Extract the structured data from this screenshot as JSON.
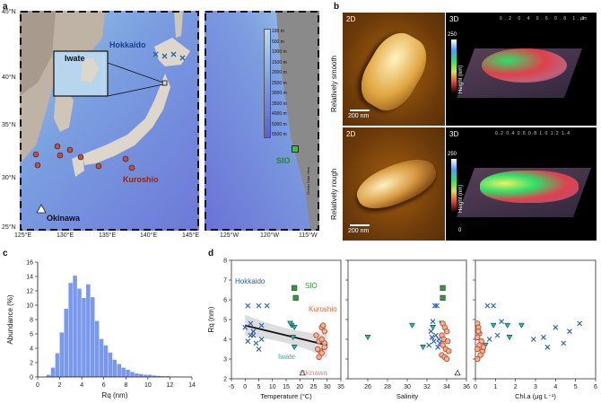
{
  "panels": {
    "a": "a",
    "b": "b",
    "c": "c",
    "d": "d"
  },
  "map": {
    "lat_ticks": [
      "45°N",
      "40°N",
      "35°N",
      "30°N",
      "25°N"
    ],
    "lon_ticks_left": [
      "125°E",
      "130°E",
      "135°E",
      "140°E",
      "145°E"
    ],
    "lon_ticks_right": [
      "125°W",
      "120°W",
      "115°W"
    ],
    "labels": {
      "hokkaido": "Hokkaido",
      "iwate": "Iwate",
      "kuroshio": "Kuroshio",
      "okinawa": "Okinawa",
      "sio": "SIO"
    },
    "depth_legend": [
      "100 m",
      "500 m",
      "1000 m",
      "1500 m",
      "2000 m",
      "2500 m",
      "3000 m",
      "3500 m",
      "4000 m",
      "5000 m",
      "6500 m"
    ],
    "credit": "Ocean Data View"
  },
  "afm": {
    "tag2d": "2D",
    "tag3d": "3D",
    "row1": "Relatively smooth",
    "row2": "Relatively rough",
    "scale": "200 nm",
    "height_label": "Height (nm)",
    "cbar_max": "250",
    "cbar_min": "0",
    "axis_um": "μm",
    "ticks_r1": [
      "0.2",
      "0.4",
      "0.6",
      "0.8",
      "1.0"
    ],
    "ticks_r2": [
      "0.2",
      "0.4",
      "0.6",
      "0.8",
      "1.0",
      "1.2",
      "1.4"
    ]
  },
  "hist": {
    "ylabel": "Abundance (%)",
    "xlabel": "Rq (nm)",
    "xticks": [
      "0",
      "2",
      "4",
      "6",
      "8",
      "10",
      "12",
      "14"
    ],
    "yticks": [
      "0",
      "2",
      "4",
      "6",
      "8",
      "10",
      "12",
      "14",
      "16"
    ]
  },
  "scatter": {
    "ylabel": "Rq (nm)",
    "ylim": [
      2,
      8
    ],
    "yticks": [
      "2",
      "3",
      "4",
      "5",
      "6",
      "7",
      "8"
    ],
    "panel1": {
      "xlabel": "Temperature (°C)",
      "xticks": [
        "-5",
        "0",
        "5",
        "10",
        "15",
        "20",
        "25",
        "30",
        "35"
      ]
    },
    "panel2": {
      "xlabel": "Salinity",
      "xticks": [
        "26",
        "28",
        "30",
        "32",
        "34",
        "36"
      ]
    },
    "panel3": {
      "xlabel": "Chl.a (μg L⁻¹)",
      "xticks": [
        "0",
        "1",
        "2",
        "3",
        "4",
        "5",
        "6"
      ]
    },
    "legend": {
      "hokkaido": "Hokkaido",
      "sio": "SIO",
      "kuroshio": "Kuroshio",
      "iwate": "Iwate",
      "okinawa": "Okinawa"
    },
    "colors": {
      "hokkaido": "#2a5fb0",
      "sio": "#2e9c3a",
      "kuroshio": "#d2682a",
      "iwate": "#1fb6b0",
      "okinawa": "#d08a8a"
    }
  },
  "chart_data": [
    {
      "type": "bar",
      "title": "",
      "xlabel": "Rq (nm)",
      "ylabel": "Abundance (%)",
      "xlim": [
        0,
        14
      ],
      "ylim": [
        0,
        16
      ],
      "bin_width": 0.4,
      "bin_start": [
        0.8,
        1.2,
        1.6,
        2.0,
        2.4,
        2.8,
        3.2,
        3.6,
        4.0,
        4.4,
        4.8,
        5.2,
        5.6,
        6.0,
        6.4,
        6.8,
        7.2,
        7.6,
        8.0,
        8.4,
        8.8,
        9.2,
        9.6,
        10.0,
        10.4,
        10.8,
        11.2,
        11.6,
        12.0,
        12.4
      ],
      "values": [
        0.3,
        1.3,
        3.3,
        6.2,
        9.5,
        13.1,
        14.1,
        12.3,
        11.0,
        12.9,
        11.1,
        7.8,
        5.3,
        4.4,
        3.4,
        2.4,
        1.8,
        1.3,
        1.0,
        0.7,
        0.5,
        0.4,
        0.3,
        0.3,
        0.2,
        0.15,
        0.1,
        0.1,
        0.05,
        0.05
      ]
    },
    {
      "type": "scatter",
      "xlabel": "Temperature (°C)",
      "ylabel": "Rq (nm)",
      "xlim": [
        -5,
        35
      ],
      "ylim": [
        2,
        8
      ],
      "series": [
        {
          "name": "Hokkaido",
          "marker": "x",
          "points": [
            [
              0,
              4.6
            ],
            [
              1,
              5.7
            ],
            [
              2,
              4.8
            ],
            [
              3,
              4.2
            ],
            [
              4,
              3.8
            ],
            [
              5,
              5.7
            ],
            [
              6,
              4.0
            ],
            [
              6,
              4.7
            ],
            [
              8,
              5.7
            ],
            [
              5,
              3.5
            ],
            [
              1,
              3.9
            ],
            [
              2,
              4.2
            ],
            [
              3,
              4.4
            ]
          ]
        },
        {
          "name": "SIO",
          "marker": "square",
          "points": [
            [
              18,
              6.6
            ],
            [
              18.5,
              6.1
            ]
          ]
        },
        {
          "name": "Iwate",
          "marker": "triangle-down",
          "points": [
            [
              17,
              4.7
            ],
            [
              18,
              4.6
            ],
            [
              17.5,
              4.1
            ],
            [
              18,
              3.6
            ],
            [
              16.5,
              4.8
            ]
          ]
        },
        {
          "name": "Kuroshio",
          "marker": "circle",
          "points": [
            [
              26,
              4.2
            ],
            [
              27,
              3.9
            ],
            [
              28,
              4.6
            ],
            [
              28.5,
              4.7
            ],
            [
              29,
              3.8
            ],
            [
              27.5,
              3.4
            ],
            [
              28,
              3.3
            ],
            [
              29,
              3.6
            ],
            [
              27,
              3.1
            ],
            [
              28,
              4.0
            ],
            [
              29,
              4.4
            ],
            [
              26.5,
              3.5
            ]
          ]
        },
        {
          "name": "Okinawa",
          "marker": "triangle-up",
          "points": [
            [
              21,
              2.3
            ]
          ]
        }
      ],
      "trend_line": {
        "x": [
          0,
          30
        ],
        "y": [
          4.7,
          3.7
        ]
      }
    },
    {
      "type": "scatter",
      "xlabel": "Salinity",
      "ylabel": "Rq (nm)",
      "xlim": [
        24,
        36
      ],
      "ylim": [
        2,
        8
      ],
      "series": [
        {
          "name": "Hokkaido",
          "marker": "x",
          "points": [
            [
              32.4,
              4.4
            ],
            [
              32.8,
              5.7
            ],
            [
              33.0,
              5.7
            ],
            [
              32.6,
              4.9
            ],
            [
              33.2,
              4.0
            ],
            [
              32.7,
              3.9
            ],
            [
              33.3,
              3.8
            ],
            [
              32.9,
              4.2
            ],
            [
              32.2,
              3.7
            ],
            [
              33.1,
              3.6
            ],
            [
              32.5,
              4.1
            ]
          ]
        },
        {
          "name": "SIO",
          "marker": "square",
          "points": [
            [
              33.6,
              6.6
            ],
            [
              33.6,
              6.1
            ]
          ]
        },
        {
          "name": "Iwate",
          "marker": "triangle-down",
          "points": [
            [
              26.0,
              4.1
            ],
            [
              30.5,
              4.7
            ],
            [
              31.6,
              3.6
            ],
            [
              32.6,
              4.6
            ],
            [
              33.5,
              4.8
            ]
          ]
        },
        {
          "name": "Kuroshio",
          "marker": "circle",
          "points": [
            [
              33.6,
              4.8
            ],
            [
              33.8,
              4.6
            ],
            [
              34.0,
              4.4
            ],
            [
              33.5,
              4.2
            ],
            [
              33.7,
              4.0
            ],
            [
              34.1,
              3.9
            ],
            [
              33.6,
              3.7
            ],
            [
              33.9,
              3.5
            ],
            [
              34.2,
              3.4
            ],
            [
              33.5,
              3.2
            ],
            [
              33.8,
              3.1
            ],
            [
              34.0,
              3.0
            ]
          ]
        },
        {
          "name": "Okinawa",
          "marker": "triangle-up",
          "points": [
            [
              35.1,
              2.3
            ]
          ]
        }
      ]
    },
    {
      "type": "scatter",
      "xlabel": "Chl.a (μg L⁻¹)",
      "ylabel": "Rq (nm)",
      "xlim": [
        0,
        6
      ],
      "ylim": [
        2,
        8
      ],
      "series": [
        {
          "name": "Hokkaido",
          "marker": "x",
          "points": [
            [
              0.6,
              5.7
            ],
            [
              0.9,
              5.7
            ],
            [
              0.7,
              4.0
            ],
            [
              1.1,
              4.2
            ],
            [
              1.3,
              4.9
            ],
            [
              3.4,
              4.1
            ],
            [
              3.6,
              3.6
            ],
            [
              4.0,
              4.6
            ],
            [
              4.4,
              3.8
            ],
            [
              4.7,
              4.4
            ],
            [
              5.2,
              4.8
            ],
            [
              2.9,
              4.0
            ]
          ]
        },
        {
          "name": "SIO",
          "marker": "square",
          "points": []
        },
        {
          "name": "Iwate",
          "marker": "triangle-down",
          "points": [
            [
              0.9,
              4.7
            ],
            [
              1.6,
              4.7
            ],
            [
              2.3,
              4.7
            ],
            [
              1.7,
              4.1
            ],
            [
              0.5,
              3.7
            ]
          ]
        },
        {
          "name": "Kuroshio",
          "marker": "circle",
          "points": [
            [
              0.1,
              4.8
            ],
            [
              0.15,
              4.6
            ],
            [
              0.2,
              4.3
            ],
            [
              0.1,
              4.1
            ],
            [
              0.3,
              3.9
            ],
            [
              0.2,
              3.7
            ],
            [
              0.1,
              3.5
            ],
            [
              0.35,
              3.4
            ],
            [
              0.25,
              3.2
            ],
            [
              0.1,
              3.0
            ],
            [
              0.4,
              3.6
            ],
            [
              0.15,
              4.4
            ]
          ]
        },
        {
          "name": "Okinawa",
          "marker": "triangle-up",
          "points": []
        }
      ]
    }
  ]
}
